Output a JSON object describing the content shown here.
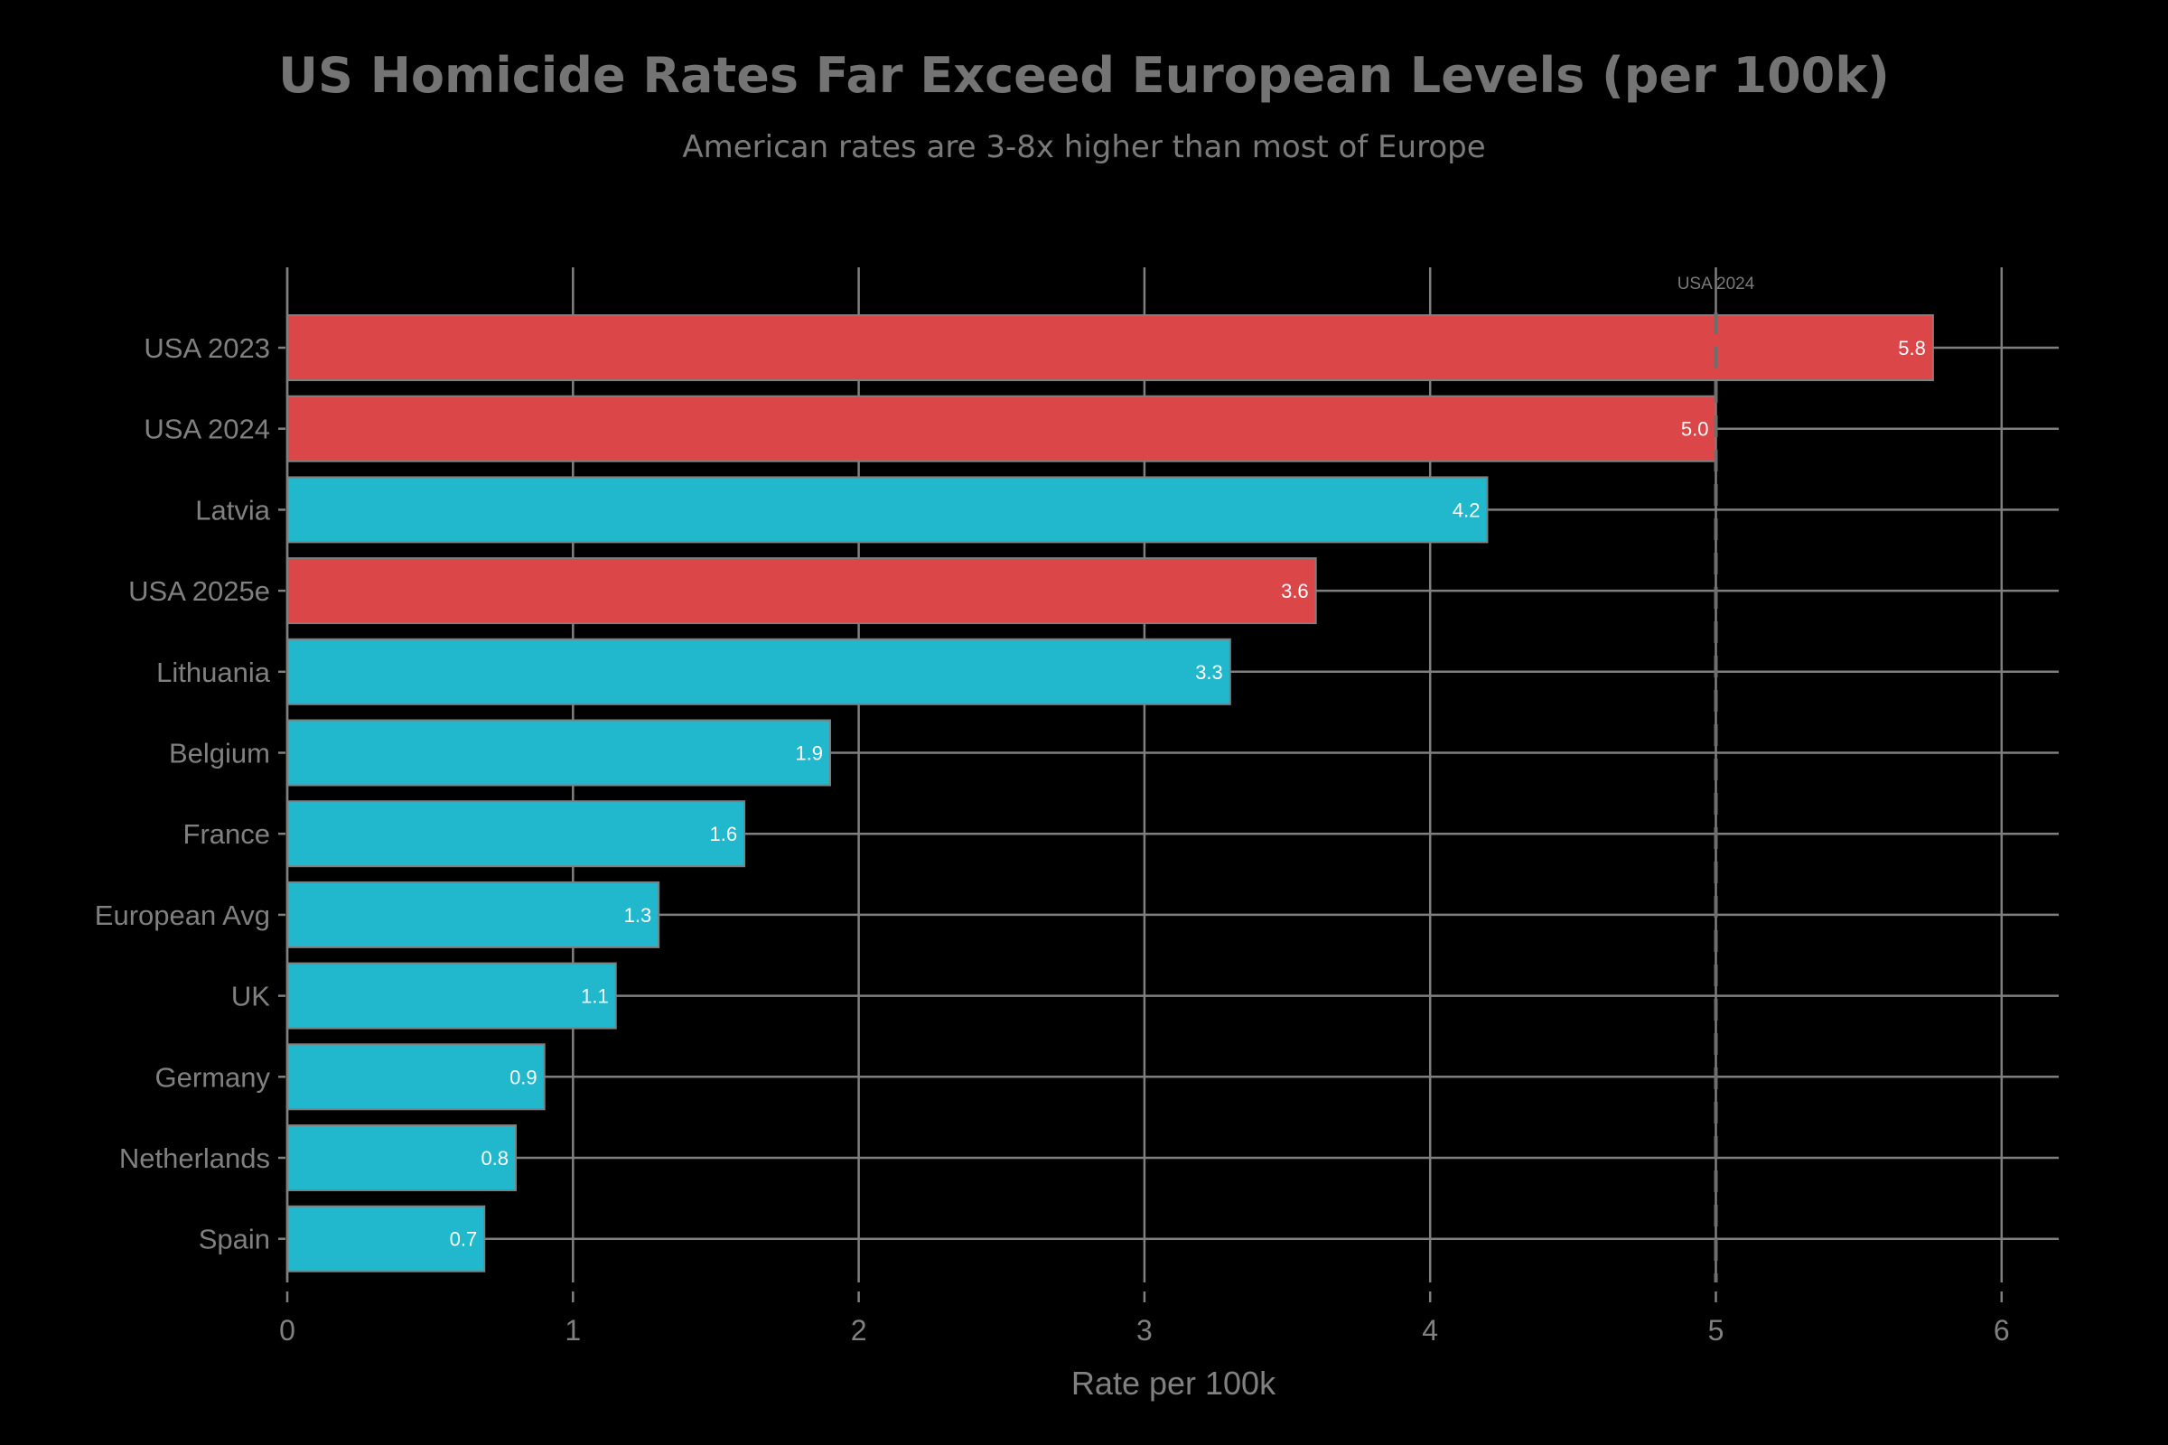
{
  "chart_data": {
    "type": "bar",
    "orientation": "horizontal",
    "title": "US Homicide Rates Far Exceed European Levels (per 100k)",
    "subtitle": "American rates are 3-8x higher than most of Europe",
    "xlabel": "Rate per 100k",
    "ylabel": "",
    "xlim": [
      0,
      6.2
    ],
    "xticks": [
      0,
      1,
      2,
      3,
      4,
      5,
      6
    ],
    "xtick_labels": [
      "0",
      "1",
      "2",
      "3",
      "4",
      "5",
      "6"
    ],
    "grid": true,
    "categories": [
      "USA 2023",
      "USA 2024",
      "Latvia",
      "USA 2025e",
      "Lithuania",
      "Belgium",
      "France",
      "European Avg",
      "UK",
      "Germany",
      "Netherlands",
      "Spain"
    ],
    "values": [
      5.76,
      5.0,
      4.2,
      3.6,
      3.3,
      1.9,
      1.6,
      1.3,
      1.15,
      0.9,
      0.8,
      0.69
    ],
    "data_labels": [
      "5.8",
      "5.0",
      "4.2",
      "3.6",
      "3.3",
      "1.9",
      "1.6",
      "1.3",
      "1.1",
      "0.9",
      "0.8",
      "0.7"
    ],
    "groups": [
      "USA",
      "USA",
      "Europe",
      "USA",
      "Europe",
      "Europe",
      "Europe",
      "Europe",
      "Europe",
      "Europe",
      "Europe",
      "Europe"
    ],
    "colors": {
      "USA": "#db4649",
      "Europe": "#21b8cd"
    },
    "reference_line": {
      "value": 5.0,
      "label": "USA 2024",
      "style": "dashed"
    }
  }
}
